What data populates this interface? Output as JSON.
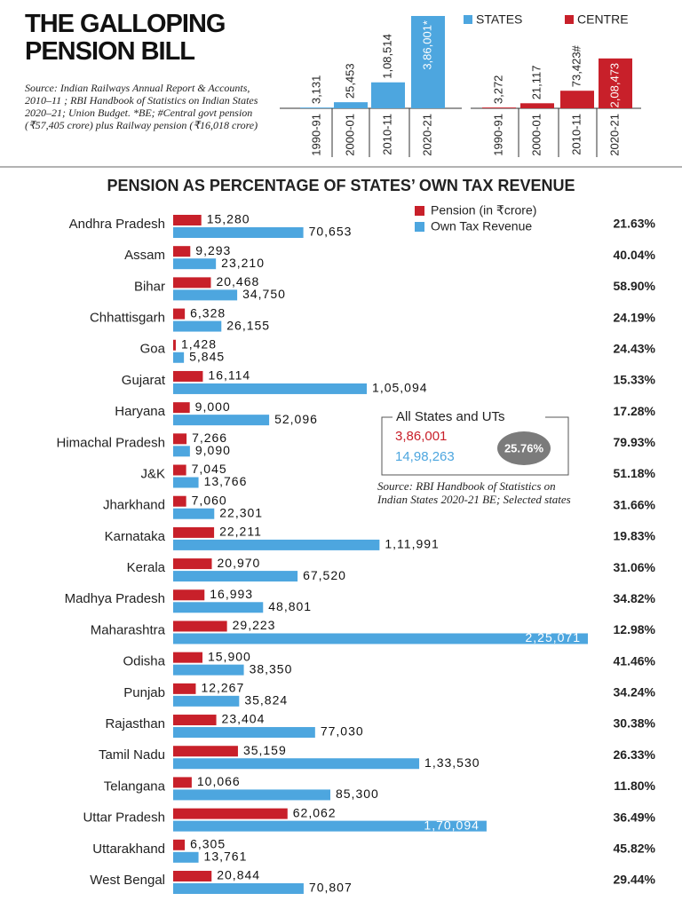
{
  "header": {
    "title": "THE GALLOPING PENSION BILL",
    "source": "Source: Indian Railways Annual Report & Accounts, 2010–11 ; RBI Handbook of Statistics on Indian States 2020–21; Union Budget. *BE; #Central govt pension (₹57,405 crore) plus Railway pension (₹16,018 crore)"
  },
  "chart_data": [
    {
      "type": "bar",
      "categories": [
        "1990-91",
        "2000-01",
        "2010-11",
        "2020-21"
      ],
      "series": [
        {
          "name": "STATES",
          "color": "#4da6df",
          "values": [
            3131,
            25453,
            108514,
            386001
          ],
          "value_labels": [
            "3,131",
            "25,453",
            "1,08,514",
            "3,86,001*"
          ]
        },
        {
          "name": "CENTRE",
          "color": "#c8202a",
          "values": [
            3272,
            21117,
            73423,
            208473
          ],
          "value_labels": [
            "3,272",
            "21,117",
            "73,423#",
            "2,08,473"
          ]
        }
      ]
    },
    {
      "type": "hbar",
      "title": "PENSION AS PERCENTAGE OF STATES’ OWN TAX REVENUE",
      "categories": [
        "Andhra Pradesh",
        "Assam",
        "Bihar",
        "Chhattisgarh",
        "Goa",
        "Gujarat",
        "Haryana",
        "Himachal Pradesh",
        "J&K",
        "Jharkhand",
        "Karnataka",
        "Kerala",
        "Madhya Pradesh",
        "Maharashtra",
        "Odisha",
        "Punjab",
        "Rajasthan",
        "Tamil Nadu",
        "Telangana",
        "Uttar Pradesh",
        "Uttarakhand",
        "West Bengal"
      ],
      "series": [
        {
          "name": "Pension (in ₹crore)",
          "color": "#c8202a",
          "values": [
            15280,
            9293,
            20468,
            6328,
            1428,
            16114,
            9000,
            7266,
            7045,
            7060,
            22211,
            20970,
            16993,
            29223,
            15900,
            12267,
            23404,
            35159,
            10066,
            62062,
            6305,
            20844
          ],
          "value_labels": [
            "15,280",
            "9,293",
            "20,468",
            "6,328",
            "1,428",
            "16,114",
            "9,000",
            "7,266",
            "7,045",
            "7,060",
            "22,211",
            "20,970",
            "16,993",
            "29,223",
            "15,900",
            "12,267",
            "23,404",
            "35,159",
            "10,066",
            "62,062",
            "6,305",
            "20,844"
          ]
        },
        {
          "name": "Own Tax Revenue",
          "color": "#4da6df",
          "values": [
            70653,
            23210,
            34750,
            26155,
            5845,
            105094,
            52096,
            9090,
            13766,
            22301,
            111991,
            67520,
            48801,
            225071,
            38350,
            35824,
            77030,
            133530,
            85300,
            170094,
            13761,
            70807
          ],
          "value_labels": [
            "70,653",
            "23,210",
            "34,750",
            "26,155",
            "5,845",
            "1,05,094",
            "52,096",
            "9,090",
            "13,766",
            "22,301",
            "1,11,991",
            "67,520",
            "48,801",
            "2,25,071",
            "38,350",
            "35,824",
            "77,030",
            "1,33,530",
            "85,300",
            "1,70,094",
            "13,761",
            "70,807"
          ]
        }
      ],
      "shares": {
        "values": [
          21.63,
          40.04,
          58.9,
          24.19,
          24.43,
          15.33,
          17.28,
          79.93,
          51.18,
          31.66,
          19.83,
          31.06,
          34.82,
          12.98,
          41.46,
          34.24,
          30.38,
          26.33,
          11.8,
          36.49,
          45.82,
          29.44
        ],
        "value_labels": [
          "21.63%",
          "40.04%",
          "58.90%",
          "24.19%",
          "24.43%",
          "15.33%",
          "17.28%",
          "79.93%",
          "51.18%",
          "31.66%",
          "19.83%",
          "31.06%",
          "34.82%",
          "12.98%",
          "41.46%",
          "34.24%",
          "30.38%",
          "26.33%",
          "11.80%",
          "36.49%",
          "45.82%",
          "29.44%"
        ]
      },
      "summary": {
        "title": "All States and UTs",
        "pension": 386001,
        "pension_label": "3,86,001",
        "revenue": 1498263,
        "revenue_label": "14,98,263",
        "share": 25.76,
        "share_label": "25.76%",
        "note": "Source: RBI Handbook of Statistics on Indian States 2020-21 BE; Selected states"
      }
    }
  ]
}
